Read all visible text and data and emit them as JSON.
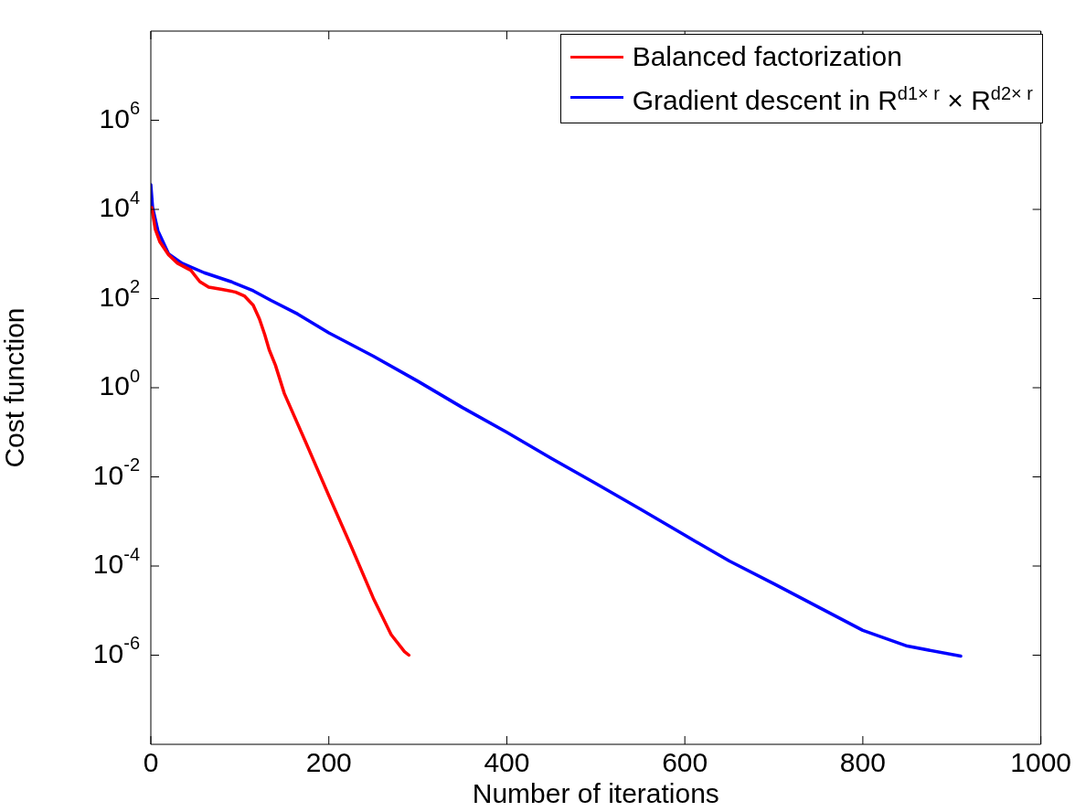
{
  "chart_data": {
    "type": "line",
    "xlabel": "Number of iterations",
    "ylabel": "Cost function",
    "log": "y",
    "grid": false,
    "legend": "top right",
    "marker": "none",
    "line_style": "solid",
    "xlim": [
      0,
      1000
    ],
    "xticks": [
      0,
      200,
      400,
      600,
      800,
      1000
    ],
    "ylim": [
      1e-08,
      100000000.0
    ],
    "yticks": [
      {
        "value": 1e-06,
        "label": "10$^{-6}$"
      },
      {
        "value": 0.0001,
        "label": "10$^{-4}$"
      },
      {
        "value": 0.01,
        "label": "10$^{-2}$"
      },
      {
        "value": 1,
        "label": "10$^{0}$"
      },
      {
        "value": 100,
        "label": "10$^{2}$"
      },
      {
        "value": 10000,
        "label": "10$^{4}$"
      },
      {
        "value": 1000000,
        "label": "10$^{6}$"
      }
    ],
    "series": [
      {
        "name": "Balanced factorization",
        "color": "#ff0000",
        "x": [
          1,
          5,
          10,
          20,
          30,
          45,
          55,
          65,
          80,
          95,
          105,
          115,
          122,
          128,
          133,
          140,
          150,
          175,
          200,
          225,
          250,
          270,
          285,
          290
        ],
        "values": [
          11000,
          3600,
          1900,
          950,
          620,
          430,
          240,
          180,
          160,
          140,
          115,
          71,
          35,
          15.5,
          7.1,
          3.2,
          0.74,
          0.054,
          0.0038,
          0.00028,
          1.9e-05,
          2.9e-06,
          1.2e-06,
          1e-06
        ]
      },
      {
        "name": "Gradient descent in R$^{d1× r}$ × R$^{d2× r}$",
        "color": "#0000ff",
        "x": [
          0,
          2,
          8,
          20,
          35,
          60,
          90,
          115,
          135,
          165,
          200,
          250,
          300,
          350,
          400,
          450,
          500,
          550,
          600,
          650,
          700,
          750,
          800,
          850,
          910
        ],
        "values": [
          36000,
          11000,
          3300,
          1000,
          620,
          380,
          240,
          150,
          91,
          45,
          17,
          5.1,
          1.4,
          0.36,
          0.1,
          0.026,
          0.0071,
          0.0019,
          0.00049,
          0.00013,
          4e-05,
          1.2e-05,
          3.6e-06,
          1.6e-06,
          9.5e-07
        ]
      }
    ]
  }
}
